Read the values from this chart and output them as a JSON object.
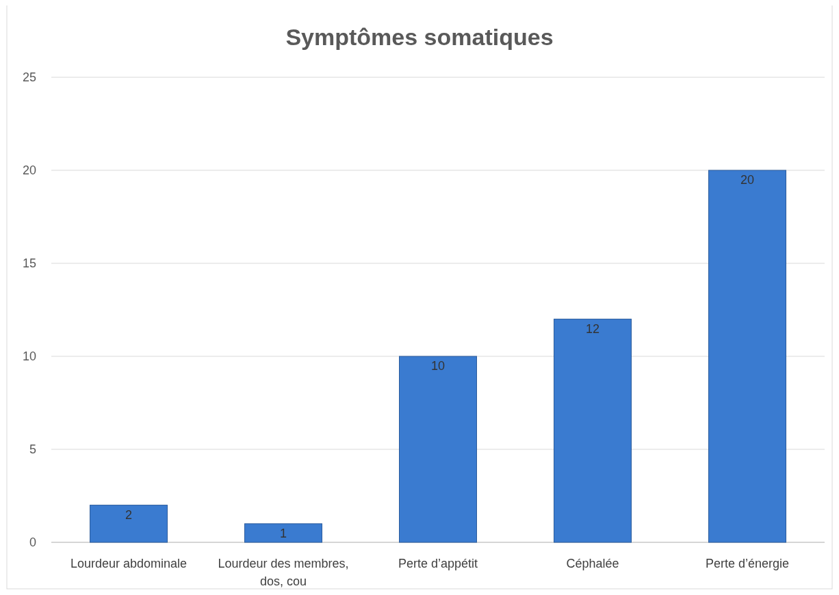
{
  "chart_data": {
    "type": "bar",
    "title": "Symptômes somatiques",
    "categories": [
      "Lourdeur abdominale",
      "Lourdeur des membres, dos, cou",
      "Perte d’appétit",
      "Céphalée",
      "Perte d’énergie"
    ],
    "values": [
      2,
      1,
      10,
      12,
      20
    ],
    "color": "#3a7bd0",
    "ylim": [
      0,
      25
    ],
    "yticks": [
      0,
      5,
      10,
      15,
      20,
      25
    ],
    "grid": "y",
    "data_labels": true
  }
}
